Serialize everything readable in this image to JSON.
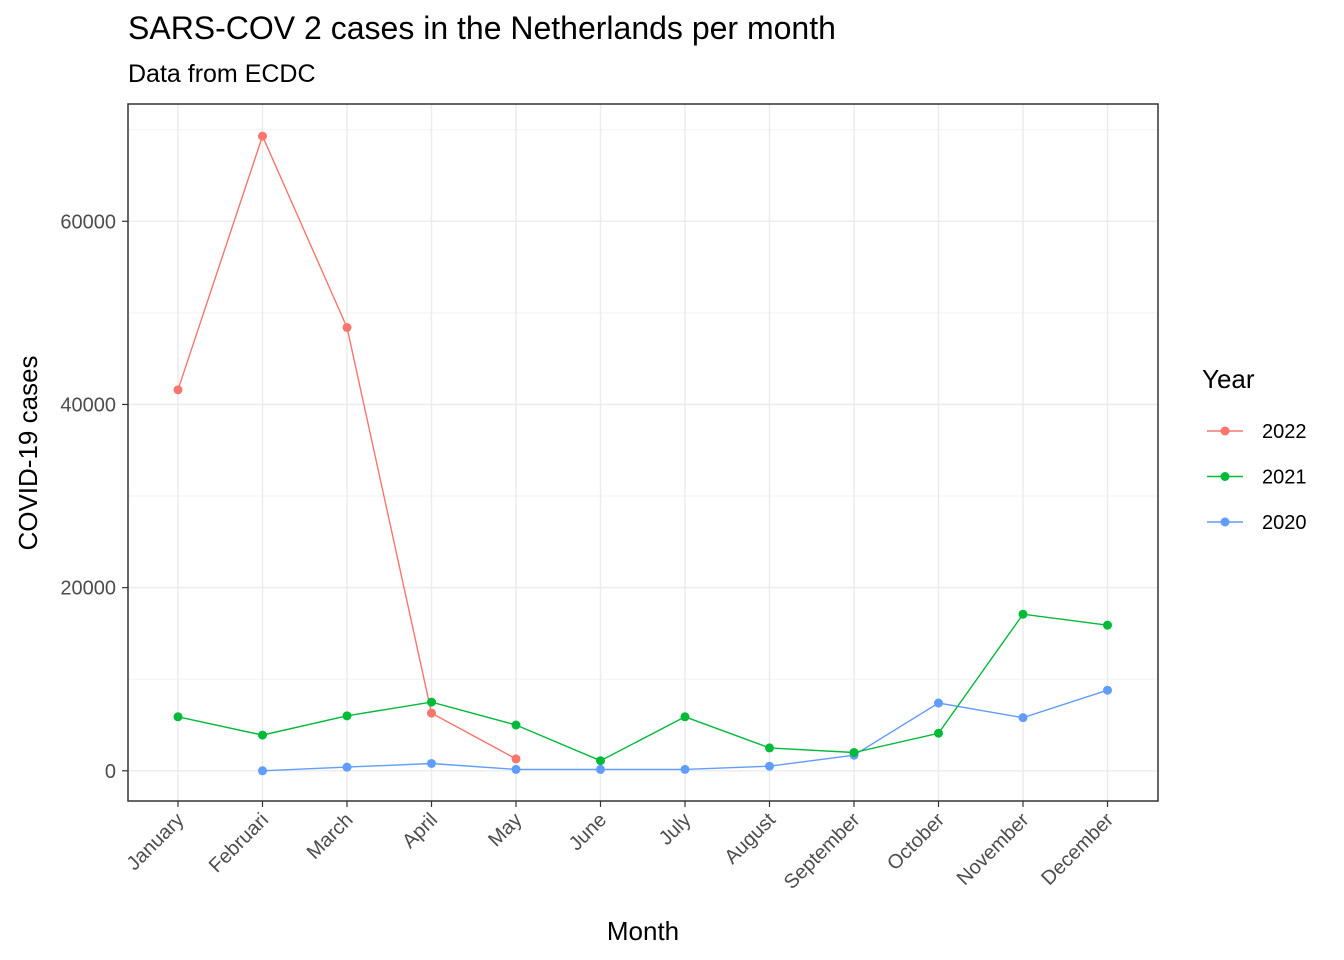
{
  "chart_data": {
    "type": "line",
    "title": "SARS-COV 2 cases in the Netherlands per month",
    "subtitle": "Data from ECDC",
    "xlabel": "Month",
    "ylabel": "COVID-19 cases",
    "categories": [
      "January",
      "Februari",
      "March",
      "April",
      "May",
      "June",
      "July",
      "August",
      "September",
      "October",
      "November",
      "December"
    ],
    "yticks": [
      0,
      20000,
      40000,
      60000
    ],
    "ytick_labels": [
      "0",
      "20000",
      "40000",
      "60000"
    ],
    "ylim": [
      -3300,
      73000
    ],
    "grid": true,
    "legend": {
      "title": "Year",
      "position": "right"
    },
    "series": [
      {
        "name": "2022",
        "color": "#F8766D",
        "values": [
          41600,
          69300,
          48400,
          6300,
          1300,
          null,
          null,
          null,
          null,
          null,
          null,
          null
        ]
      },
      {
        "name": "2021",
        "color": "#00BA38",
        "values": [
          5900,
          3900,
          6000,
          7500,
          5000,
          1100,
          5900,
          2500,
          2000,
          4100,
          17100,
          15900
        ]
      },
      {
        "name": "2020",
        "color": "#619CFF",
        "values": [
          null,
          0,
          400,
          800,
          150,
          150,
          150,
          500,
          1700,
          7400,
          5800,
          8800
        ]
      }
    ]
  }
}
